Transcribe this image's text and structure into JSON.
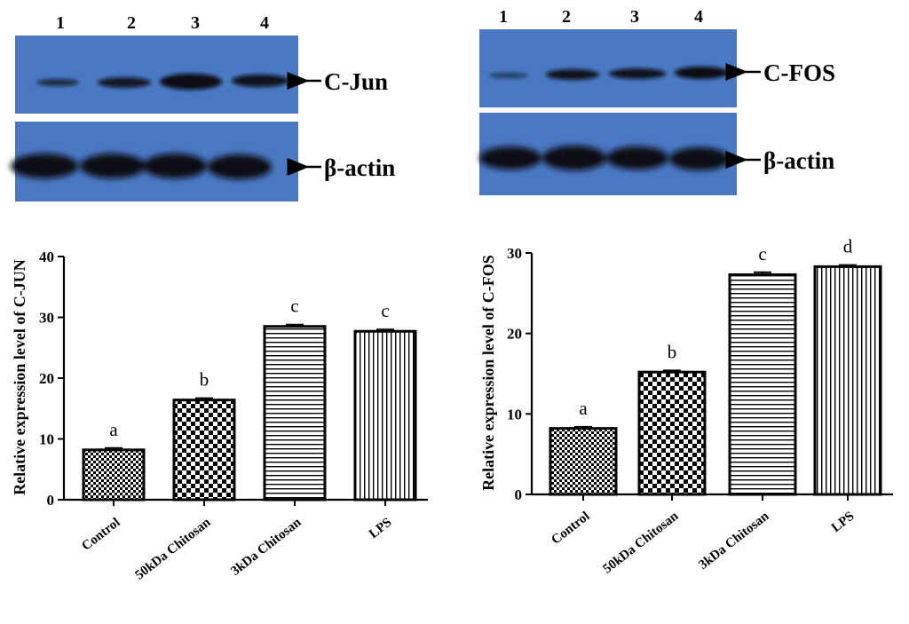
{
  "blots": [
    {
      "lanes": [
        "1",
        "2",
        "3",
        "4"
      ],
      "target_label": "C-Jun",
      "loading_label": "β-actin",
      "target_band_intensity": [
        0.35,
        0.7,
        1.0,
        0.85
      ],
      "loading_band_intensity": [
        1.0,
        1.0,
        1.0,
        1.0
      ]
    },
    {
      "lanes": [
        "1",
        "2",
        "3",
        "4"
      ],
      "target_label": "C-FOS",
      "loading_label": "β-actin",
      "target_band_intensity": [
        0.3,
        0.75,
        0.8,
        0.9
      ],
      "loading_band_intensity": [
        1.0,
        1.0,
        1.0,
        1.0
      ]
    }
  ],
  "colors": {
    "blot_background": "#4a78c2",
    "band": "#0a0e18",
    "bar_outline": "#000000"
  },
  "chart_data": [
    {
      "type": "bar",
      "categories": [
        "Control",
        "50kDa Chitosan",
        "3kDa Chitosan",
        "LPS"
      ],
      "values": [
        8.2,
        16.4,
        28.5,
        27.7
      ],
      "errors": [
        0.3,
        0.3,
        0.3,
        0.3
      ],
      "significance": [
        "a",
        "b",
        "c",
        "c"
      ],
      "patterns": [
        "fine-checker",
        "coarse-checker",
        "horizontal-lines",
        "vertical-lines"
      ],
      "ylabel": "Relative expression level of C-JUN",
      "ylim": [
        0,
        40
      ],
      "yticks": [
        "0",
        "10",
        "20",
        "30",
        "40"
      ]
    },
    {
      "type": "bar",
      "categories": [
        "Control",
        "50kDa Chitosan",
        "3kDa Chitosan",
        "LPS"
      ],
      "values": [
        8.2,
        15.2,
        27.3,
        28.3
      ],
      "errors": [
        0.2,
        0.2,
        0.3,
        0.2
      ],
      "significance": [
        "a",
        "b",
        "c",
        "d"
      ],
      "patterns": [
        "fine-checker",
        "coarse-checker",
        "horizontal-lines",
        "vertical-lines"
      ],
      "ylabel": "Relative expression level of C-FOS",
      "ylim": [
        0,
        30
      ],
      "yticks": [
        "0",
        "10",
        "20",
        "30"
      ]
    }
  ]
}
